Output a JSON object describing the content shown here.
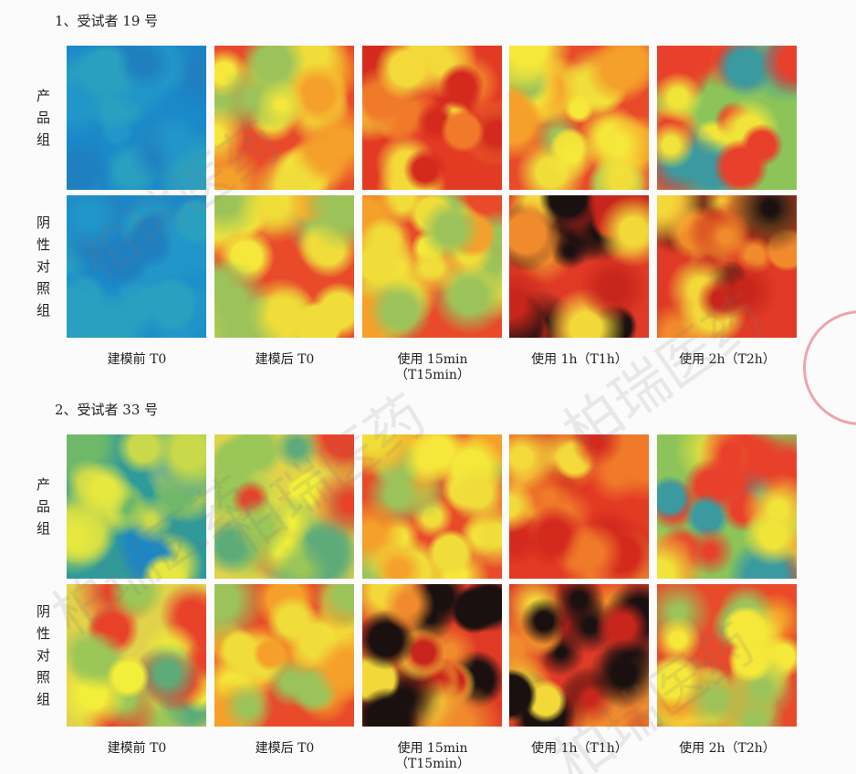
{
  "sections": [
    {
      "title": "1、受试者 19 号",
      "rows": [
        "产品组",
        "阴性对照组"
      ],
      "columns": [
        [
          "建模前 T0"
        ],
        [
          "建模后 T0"
        ],
        [
          "使用 15min",
          "（T15min）"
        ],
        [
          "使用 1h（T1h）"
        ],
        [
          "使用 2h（T2h）"
        ]
      ]
    },
    {
      "title": "2、受试者 33 号",
      "rows": [
        "产品组",
        "阴性对照组"
      ],
      "columns": [
        [
          "建模前 T0"
        ],
        [
          "建模后 T0"
        ],
        [
          "使用 15min",
          "（T15min）"
        ],
        [
          "使用 1h（T1h）"
        ],
        [
          "使用 2h（T2h）"
        ]
      ]
    }
  ],
  "watermark": "柏瑞医药"
}
